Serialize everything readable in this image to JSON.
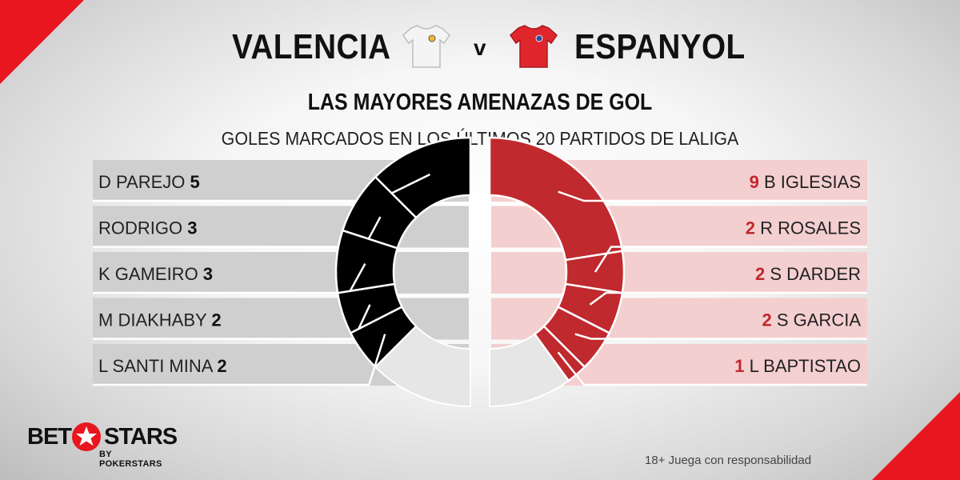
{
  "header": {
    "home_team": "VALENCIA",
    "vs": "v",
    "away_team": "ESPANYOL",
    "home_jersey_icon": "white-jersey-icon",
    "away_jersey_icon": "red-jersey-icon"
  },
  "colors": {
    "home": "#000000",
    "home_remainder": "#e6e6e6",
    "home_bar": "#cfcfcf",
    "away": "#c0292e",
    "away_remainder": "#e6e6e6",
    "away_bar": "#f4cfd0",
    "accent": "#e8161f"
  },
  "chart_data": {
    "type": "pie",
    "title": "LAS MAYORES AMENAZAS DE GOL",
    "subtitle": "GOLES MARCADOS EN LOS ÚLTIMOS 20 PARTIDOS DE LALIGA",
    "total_scale": 20,
    "series": [
      {
        "name": "VALENCIA",
        "players": [
          {
            "label": "D PAREJO",
            "value": 5
          },
          {
            "label": "RODRIGO",
            "value": 3
          },
          {
            "label": "K GAMEIRO",
            "value": 3
          },
          {
            "label": "M DIAKHABY",
            "value": 2
          },
          {
            "label": "L SANTI MINA",
            "value": 2
          }
        ]
      },
      {
        "name": "ESPANYOL",
        "players": [
          {
            "label": "B IGLESIAS",
            "value": 9
          },
          {
            "label": "R ROSALES",
            "value": 2
          },
          {
            "label": "S DARDER",
            "value": 2
          },
          {
            "label": "S GARCIA",
            "value": 2
          },
          {
            "label": "L BAPTISTAO",
            "value": 1
          }
        ]
      }
    ]
  },
  "footer": {
    "logo_main_left": "BET",
    "logo_main_right": "STARS",
    "logo_sub": "BY POKERSTARS",
    "logo_icon": "red-star-icon",
    "disclaimer": "18+ Juega con responsabilidad"
  }
}
